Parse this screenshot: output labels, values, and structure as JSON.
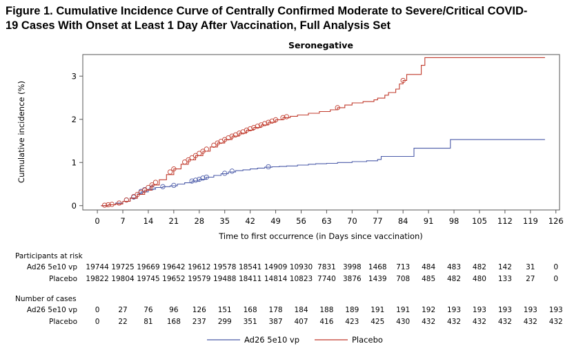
{
  "figure_title_line1": "Figure 1. Cumulative Incidence Curve of Centrally Confirmed Moderate to Severe/Critical COVID-",
  "figure_title_line2": "19 Cases With Onset at Least 1 Day After Vaccination, Full Analysis Set",
  "colors": {
    "ad26": "#4a5aa8",
    "placebo": "#c0392b",
    "axis": "#555555"
  },
  "chart_data": {
    "type": "line",
    "title": "Seronegative",
    "xlabel": "Time to first occurrence (in Days since vaccination)",
    "ylabel": "Cumulative incidence (%)",
    "xlim": [
      -4,
      127
    ],
    "ylim": [
      -0.1,
      3.5
    ],
    "xticks": [
      0,
      7,
      14,
      21,
      28,
      35,
      42,
      49,
      56,
      63,
      70,
      77,
      84,
      91,
      98,
      105,
      112,
      119,
      126
    ],
    "yticks": [
      0,
      1,
      2,
      3
    ],
    "grid": false,
    "legend_position": "bottom",
    "series": [
      {
        "name": "Ad26 5e10 vp",
        "color": "#4a5aa8",
        "points": [
          [
            1,
            0
          ],
          [
            3,
            0.02
          ],
          [
            5,
            0.06
          ],
          [
            7,
            0.1
          ],
          [
            9,
            0.18
          ],
          [
            11,
            0.27
          ],
          [
            12,
            0.32
          ],
          [
            14,
            0.38
          ],
          [
            16,
            0.42
          ],
          [
            18,
            0.44
          ],
          [
            20,
            0.46
          ],
          [
            22,
            0.5
          ],
          [
            24,
            0.53
          ],
          [
            26,
            0.57
          ],
          [
            28,
            0.61
          ],
          [
            30,
            0.66
          ],
          [
            32,
            0.7
          ],
          [
            34,
            0.74
          ],
          [
            36,
            0.78
          ],
          [
            38,
            0.81
          ],
          [
            40,
            0.83
          ],
          [
            42,
            0.85
          ],
          [
            44,
            0.87
          ],
          [
            46,
            0.89
          ],
          [
            48,
            0.9
          ],
          [
            50,
            0.91
          ],
          [
            52,
            0.92
          ],
          [
            55,
            0.94
          ],
          [
            58,
            0.96
          ],
          [
            60,
            0.97
          ],
          [
            63,
            0.98
          ],
          [
            66,
            1.0
          ],
          [
            70,
            1.02
          ],
          [
            74,
            1.04
          ],
          [
            77,
            1.07
          ],
          [
            78,
            1.14
          ],
          [
            86,
            1.14
          ],
          [
            87,
            1.33
          ],
          [
            96,
            1.33
          ],
          [
            97,
            1.53
          ],
          [
            123,
            1.53
          ]
        ],
        "censor_marks": [
          [
            8,
            0.13
          ],
          [
            10,
            0.2
          ],
          [
            12,
            0.33
          ],
          [
            13,
            0.37
          ],
          [
            15,
            0.41
          ],
          [
            18,
            0.44
          ],
          [
            21,
            0.47
          ],
          [
            26,
            0.57
          ],
          [
            27,
            0.59
          ],
          [
            28,
            0.61
          ],
          [
            29,
            0.64
          ],
          [
            30,
            0.66
          ],
          [
            35,
            0.75
          ],
          [
            37,
            0.8
          ],
          [
            47,
            0.9
          ]
        ]
      },
      {
        "name": "Placebo",
        "color": "#c0392b",
        "points": [
          [
            1,
            0
          ],
          [
            3,
            0.02
          ],
          [
            5,
            0.04
          ],
          [
            7,
            0.1
          ],
          [
            9,
            0.17
          ],
          [
            11,
            0.26
          ],
          [
            13,
            0.36
          ],
          [
            15,
            0.48
          ],
          [
            17,
            0.6
          ],
          [
            19,
            0.72
          ],
          [
            21,
            0.85
          ],
          [
            23,
            0.96
          ],
          [
            25,
            1.06
          ],
          [
            27,
            1.16
          ],
          [
            29,
            1.26
          ],
          [
            31,
            1.36
          ],
          [
            33,
            1.45
          ],
          [
            35,
            1.53
          ],
          [
            37,
            1.61
          ],
          [
            39,
            1.68
          ],
          [
            41,
            1.75
          ],
          [
            43,
            1.81
          ],
          [
            45,
            1.87
          ],
          [
            47,
            1.93
          ],
          [
            49,
            1.99
          ],
          [
            51,
            2.04
          ],
          [
            53,
            2.07
          ],
          [
            55,
            2.1
          ],
          [
            58,
            2.14
          ],
          [
            61,
            2.18
          ],
          [
            64,
            2.22
          ],
          [
            66,
            2.27
          ],
          [
            68,
            2.33
          ],
          [
            70,
            2.38
          ],
          [
            73,
            2.41
          ],
          [
            76,
            2.45
          ],
          [
            77,
            2.49
          ],
          [
            79,
            2.56
          ],
          [
            80,
            2.62
          ],
          [
            82,
            2.7
          ],
          [
            83,
            2.82
          ],
          [
            84,
            2.9
          ],
          [
            85,
            3.04
          ],
          [
            88,
            3.04
          ],
          [
            89,
            3.25
          ],
          [
            90,
            3.43
          ],
          [
            123,
            3.43
          ]
        ],
        "censor_marks": [
          [
            2,
            0.01
          ],
          [
            3,
            0.02
          ],
          [
            4,
            0.03
          ],
          [
            6,
            0.06
          ],
          [
            8,
            0.13
          ],
          [
            10,
            0.21
          ],
          [
            11,
            0.26
          ],
          [
            12,
            0.31
          ],
          [
            13,
            0.36
          ],
          [
            14,
            0.42
          ],
          [
            15,
            0.48
          ],
          [
            16,
            0.54
          ],
          [
            20,
            0.78
          ],
          [
            21,
            0.85
          ],
          [
            24,
            1.01
          ],
          [
            25,
            1.06
          ],
          [
            26,
            1.11
          ],
          [
            27,
            1.16
          ],
          [
            28,
            1.21
          ],
          [
            29,
            1.26
          ],
          [
            30,
            1.31
          ],
          [
            32,
            1.4
          ],
          [
            33,
            1.45
          ],
          [
            34,
            1.49
          ],
          [
            35,
            1.53
          ],
          [
            36,
            1.57
          ],
          [
            37,
            1.61
          ],
          [
            38,
            1.64
          ],
          [
            39,
            1.68
          ],
          [
            40,
            1.71
          ],
          [
            41,
            1.75
          ],
          [
            42,
            1.78
          ],
          [
            43,
            1.81
          ],
          [
            44,
            1.84
          ],
          [
            45,
            1.87
          ],
          [
            46,
            1.9
          ],
          [
            47,
            1.93
          ],
          [
            48,
            1.96
          ],
          [
            49,
            1.99
          ],
          [
            51,
            2.04
          ],
          [
            52,
            2.06
          ],
          [
            66,
            2.27
          ],
          [
            84,
            2.9
          ]
        ]
      }
    ]
  },
  "risk_table": {
    "participants_label": "Participants at risk",
    "cases_label": "Number of cases",
    "rows_at_risk": [
      {
        "label": "Ad26 5e10 vp",
        "values": [
          "19744",
          "19725",
          "19669",
          "19642",
          "19612",
          "19578",
          "18541",
          "14909",
          "10930",
          "7831",
          "3998",
          "1468",
          "713",
          "484",
          "483",
          "482",
          "142",
          "31",
          "0"
        ]
      },
      {
        "label": "Placebo",
        "values": [
          "19822",
          "19804",
          "19745",
          "19652",
          "19579",
          "19488",
          "18411",
          "14814",
          "10823",
          "7740",
          "3876",
          "1439",
          "708",
          "485",
          "482",
          "480",
          "133",
          "27",
          "0"
        ]
      }
    ],
    "rows_cases": [
      {
        "label": "Ad26 5e10 vp",
        "values": [
          "0",
          "27",
          "76",
          "96",
          "126",
          "151",
          "168",
          "178",
          "184",
          "188",
          "189",
          "191",
          "191",
          "192",
          "193",
          "193",
          "193",
          "193",
          "193"
        ]
      },
      {
        "label": "Placebo",
        "values": [
          "0",
          "22",
          "81",
          "168",
          "237",
          "299",
          "351",
          "387",
          "407",
          "416",
          "423",
          "425",
          "430",
          "432",
          "432",
          "432",
          "432",
          "432",
          "432"
        ]
      }
    ]
  },
  "legend": {
    "items": [
      "Ad26 5e10 vp",
      "Placebo"
    ]
  }
}
